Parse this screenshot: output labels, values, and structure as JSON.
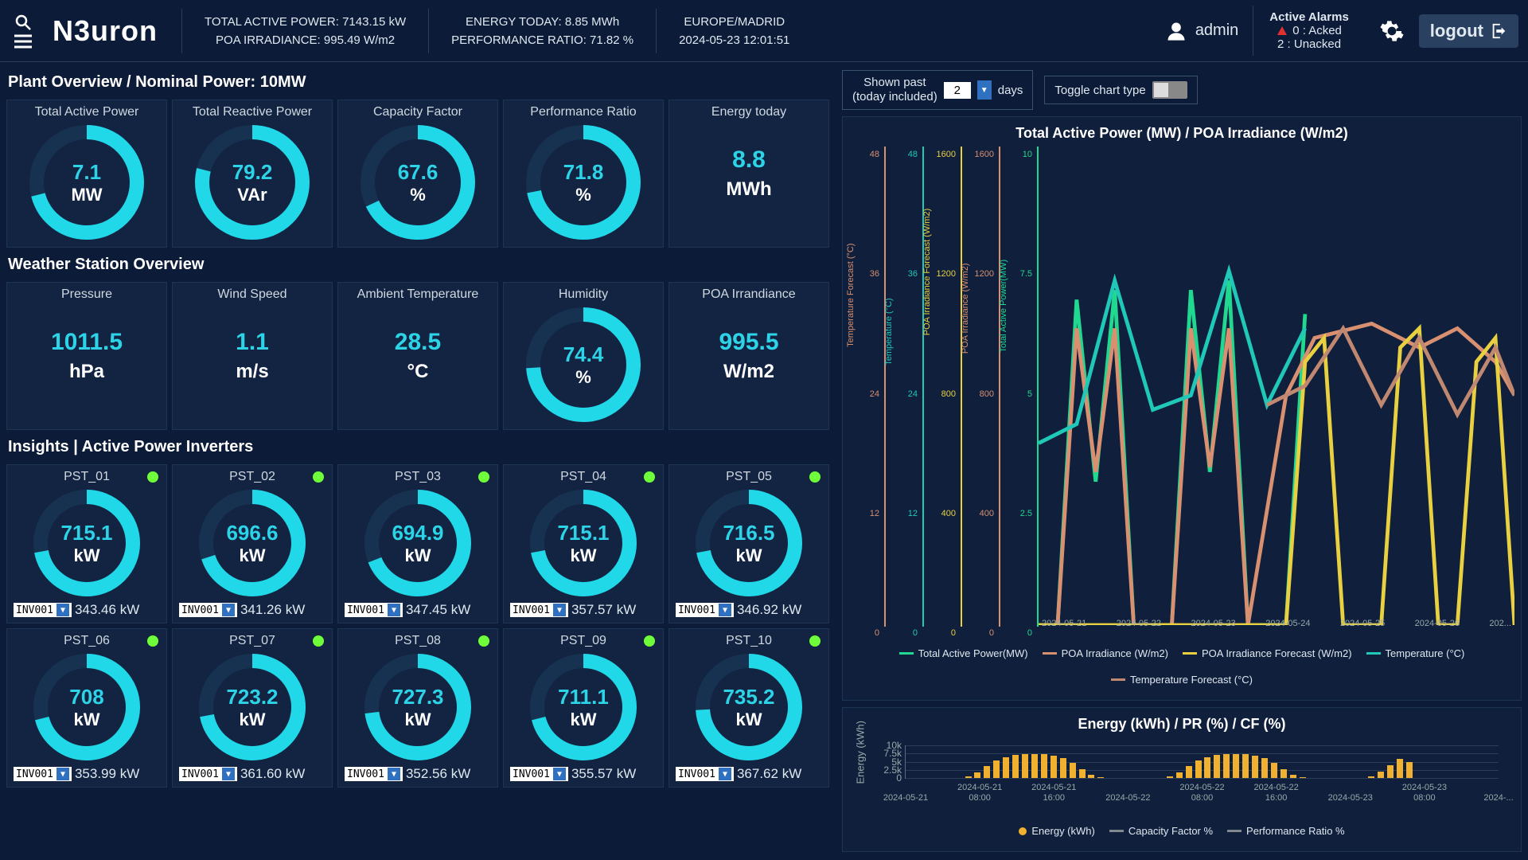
{
  "header": {
    "logo": "N3uron",
    "metrics": {
      "total_active_power": "TOTAL ACTIVE POWER: 7143.15 kW",
      "poa_irradiance": "POA IRRADIANCE: 995.49 W/m2",
      "energy_today": "ENERGY TODAY: 8.85 MWh",
      "performance_ratio": "PERFORMANCE RATIO: 71.82 %",
      "timezone": "EUROPE/MADRID",
      "datetime": "2024-05-23 12:01:51"
    },
    "user": "admin",
    "alarms": {
      "title": "Active Alarms",
      "acked": "0 : Acked",
      "unacked": "2 : Unacked"
    },
    "logout": "logout"
  },
  "sections": {
    "plant_overview": "Plant Overview / Nominal Power: 10MW",
    "weather": "Weather Station Overview",
    "insights": "Insights | Active Power Inverters"
  },
  "gauge_color": "#20d8e8",
  "gauge_track": "#163250",
  "status_color": "#6eff3a",
  "plant_cards": [
    {
      "title": "Total Active Power",
      "value": "7.1",
      "unit": "MW",
      "pct": 71,
      "type": "gauge"
    },
    {
      "title": "Total Reactive Power",
      "value": "79.2",
      "unit": "VAr",
      "pct": 79,
      "type": "gauge"
    },
    {
      "title": "Capacity Factor",
      "value": "67.6",
      "unit": "%",
      "pct": 68,
      "type": "gauge"
    },
    {
      "title": "Performance Ratio",
      "value": "71.8",
      "unit": "%",
      "pct": 72,
      "type": "gauge"
    },
    {
      "title": "Energy today",
      "value": "8.8",
      "unit": "MWh",
      "type": "plain"
    }
  ],
  "weather_cards": [
    {
      "title": "Pressure",
      "value": "1011.5",
      "unit": "hPa",
      "type": "plain"
    },
    {
      "title": "Wind Speed",
      "value": "1.1",
      "unit": "m/s",
      "type": "plain"
    },
    {
      "title": "Ambient Temperature",
      "value": "28.5",
      "unit": "°C",
      "type": "plain"
    },
    {
      "title": "Humidity",
      "value": "74.4",
      "unit": "%",
      "pct": 74,
      "type": "gauge"
    },
    {
      "title": "POA Irrandiance",
      "value": "995.5",
      "unit": "W/m2",
      "type": "plain"
    }
  ],
  "inverters": [
    {
      "name": "PST_01",
      "value": "715.1",
      "unit": "kW",
      "pct": 72,
      "inv": "INV001",
      "inv_val": "343.46 kW"
    },
    {
      "name": "PST_02",
      "value": "696.6",
      "unit": "kW",
      "pct": 70,
      "inv": "INV001",
      "inv_val": "341.26 kW"
    },
    {
      "name": "PST_03",
      "value": "694.9",
      "unit": "kW",
      "pct": 69,
      "inv": "INV001",
      "inv_val": "347.45 kW"
    },
    {
      "name": "PST_04",
      "value": "715.1",
      "unit": "kW",
      "pct": 72,
      "inv": "INV001",
      "inv_val": "357.57 kW"
    },
    {
      "name": "PST_05",
      "value": "716.5",
      "unit": "kW",
      "pct": 72,
      "inv": "INV001",
      "inv_val": "346.92 kW"
    },
    {
      "name": "PST_06",
      "value": "708",
      "unit": "kW",
      "pct": 71,
      "inv": "INV001",
      "inv_val": "353.99 kW"
    },
    {
      "name": "PST_07",
      "value": "723.2",
      "unit": "kW",
      "pct": 72,
      "inv": "INV001",
      "inv_val": "361.60 kW"
    },
    {
      "name": "PST_08",
      "value": "727.3",
      "unit": "kW",
      "pct": 73,
      "inv": "INV001",
      "inv_val": "352.56 kW"
    },
    {
      "name": "PST_09",
      "value": "711.1",
      "unit": "kW",
      "pct": 71,
      "inv": "INV001",
      "inv_val": "355.57 kW"
    },
    {
      "name": "PST_10",
      "value": "735.2",
      "unit": "kW",
      "pct": 74,
      "inv": "INV001",
      "inv_val": "367.62 kW"
    }
  ],
  "controls": {
    "shown_past_1": "Shown past",
    "shown_past_2": "(today included)",
    "days_value": "2",
    "days_label": "days",
    "toggle_label": "Toggle chart type"
  },
  "chart1": {
    "title": "Total Active Power (MW) / POA Irradiance (W/m2)",
    "axes": [
      {
        "label": "Temperature Forecast (°C)",
        "color": "#d89070",
        "ticks": [
          "48",
          "36",
          "24",
          "12",
          "0"
        ]
      },
      {
        "label": "Temperature (°C)",
        "color": "#20c8b8",
        "ticks": [
          "48",
          "36",
          "24",
          "12",
          "0"
        ]
      },
      {
        "label": "POA Irradiance Forecast (W/m2)",
        "color": "#e8d040",
        "ticks": [
          "1600",
          "1200",
          "800",
          "400",
          "0"
        ]
      },
      {
        "label": "POA Irradiance (W/m2)",
        "color": "#d89070",
        "ticks": [
          "1600",
          "1200",
          "800",
          "400",
          "0"
        ]
      },
      {
        "label": "Total Active Power(MW)",
        "color": "#20d890",
        "ticks": [
          "10",
          "7.5",
          "5",
          "2.5",
          "0"
        ]
      }
    ],
    "xticks": [
      "2024-05-21",
      "2024-05-22",
      "2024-05-23",
      "2024-05-24",
      "2024-05-25",
      "2024-05-26",
      "202..."
    ],
    "legend": [
      {
        "label": "Total Active Power(MW)",
        "color": "#20d890"
      },
      {
        "label": "POA Irradiance (W/m2)",
        "color": "#d89070"
      },
      {
        "label": "POA Irradiance Forecast (W/m2)",
        "color": "#e8d040"
      },
      {
        "label": "Temperature (°C)",
        "color": "#20c8b8"
      },
      {
        "label": "Temperature Forecast (°C)",
        "color": "#c08870"
      }
    ],
    "series": {
      "power": {
        "color": "#20d890",
        "pts": [
          [
            0,
            0
          ],
          [
            4,
            0
          ],
          [
            8,
            68
          ],
          [
            12,
            30
          ],
          [
            16,
            70
          ],
          [
            20,
            0
          ],
          [
            28,
            0
          ],
          [
            32,
            70
          ],
          [
            36,
            32
          ],
          [
            40,
            72
          ],
          [
            44,
            0
          ],
          [
            52,
            0
          ],
          [
            56,
            65
          ]
        ]
      },
      "poa": {
        "color": "#d89070",
        "pts": [
          [
            0,
            0
          ],
          [
            4,
            0
          ],
          [
            8,
            62
          ],
          [
            12,
            32
          ],
          [
            16,
            62
          ],
          [
            20,
            0
          ],
          [
            28,
            0
          ],
          [
            32,
            62
          ],
          [
            36,
            33
          ],
          [
            40,
            62
          ],
          [
            44,
            0
          ],
          [
            52,
            48
          ],
          [
            58,
            60
          ],
          [
            70,
            63
          ],
          [
            80,
            58
          ],
          [
            88,
            62
          ],
          [
            96,
            55
          ],
          [
            100,
            48
          ]
        ]
      },
      "poa_fc": {
        "color": "#e8d040",
        "pts": [
          [
            0,
            0
          ],
          [
            48,
            0
          ],
          [
            52,
            0
          ],
          [
            56,
            55
          ],
          [
            60,
            60
          ],
          [
            64,
            0
          ],
          [
            68,
            0
          ],
          [
            72,
            0
          ],
          [
            76,
            58
          ],
          [
            80,
            62
          ],
          [
            84,
            0
          ],
          [
            88,
            0
          ],
          [
            92,
            55
          ],
          [
            96,
            60
          ],
          [
            100,
            0
          ]
        ]
      },
      "temp": {
        "color": "#20c8b8",
        "pts": [
          [
            0,
            38
          ],
          [
            8,
            42
          ],
          [
            16,
            72
          ],
          [
            24,
            45
          ],
          [
            32,
            48
          ],
          [
            40,
            74
          ],
          [
            48,
            46
          ],
          [
            56,
            62
          ]
        ]
      },
      "temp_fc": {
        "color": "#c08870",
        "pts": [
          [
            48,
            46
          ],
          [
            56,
            50
          ],
          [
            64,
            62
          ],
          [
            72,
            46
          ],
          [
            80,
            60
          ],
          [
            88,
            44
          ],
          [
            96,
            58
          ],
          [
            100,
            48
          ]
        ]
      }
    }
  },
  "chart2": {
    "title": "Energy (kWh) / PR (%) / CF (%)",
    "ylabel": "Energy (kWh)",
    "ymax": 10000,
    "yticks": [
      {
        "v": 0,
        "l": "0"
      },
      {
        "v": 2500,
        "l": "2.5k"
      },
      {
        "v": 5000,
        "l": "5k"
      },
      {
        "v": 7500,
        "l": "7.5k"
      },
      {
        "v": 10000,
        "l": "10k"
      }
    ],
    "xticks": [
      "2024-05-21",
      "2024-05-21 08:00",
      "2024-05-21 16:00",
      "2024-05-22",
      "2024-05-22 08:00",
      "2024-05-22 16:00",
      "2024-05-23",
      "2024-05-23 08:00",
      "2024-..."
    ],
    "bar_color": "#f0b030",
    "bars": [
      {
        "x": 10,
        "v": 400
      },
      {
        "x": 11.6,
        "v": 1800
      },
      {
        "x": 13.2,
        "v": 3600
      },
      {
        "x": 14.8,
        "v": 5400
      },
      {
        "x": 16.4,
        "v": 6400
      },
      {
        "x": 18,
        "v": 7000
      },
      {
        "x": 19.6,
        "v": 7300
      },
      {
        "x": 21.2,
        "v": 7400
      },
      {
        "x": 22.8,
        "v": 7200
      },
      {
        "x": 24.4,
        "v": 6800
      },
      {
        "x": 26,
        "v": 6000
      },
      {
        "x": 27.6,
        "v": 4600
      },
      {
        "x": 29.2,
        "v": 2800
      },
      {
        "x": 30.8,
        "v": 1000
      },
      {
        "x": 32.4,
        "v": 200
      },
      {
        "x": 44,
        "v": 400
      },
      {
        "x": 45.6,
        "v": 1800
      },
      {
        "x": 47.2,
        "v": 3600
      },
      {
        "x": 48.8,
        "v": 5400
      },
      {
        "x": 50.4,
        "v": 6400
      },
      {
        "x": 52,
        "v": 7000
      },
      {
        "x": 53.6,
        "v": 7300
      },
      {
        "x": 55.2,
        "v": 7400
      },
      {
        "x": 56.8,
        "v": 7200
      },
      {
        "x": 58.4,
        "v": 6800
      },
      {
        "x": 60,
        "v": 6000
      },
      {
        "x": 61.6,
        "v": 4600
      },
      {
        "x": 63.2,
        "v": 2800
      },
      {
        "x": 64.8,
        "v": 1000
      },
      {
        "x": 66.4,
        "v": 200
      },
      {
        "x": 78,
        "v": 400
      },
      {
        "x": 79.6,
        "v": 1900
      },
      {
        "x": 81.2,
        "v": 3800
      },
      {
        "x": 82.8,
        "v": 5800
      },
      {
        "x": 84.4,
        "v": 4800
      }
    ],
    "legend": [
      {
        "label": "Energy (kWh)",
        "color": "#f0b030",
        "type": "dot"
      },
      {
        "label": "Capacity Factor %",
        "color": "#808890",
        "type": "line"
      },
      {
        "label": "Performance Ratio %",
        "color": "#808890",
        "type": "line"
      }
    ]
  }
}
